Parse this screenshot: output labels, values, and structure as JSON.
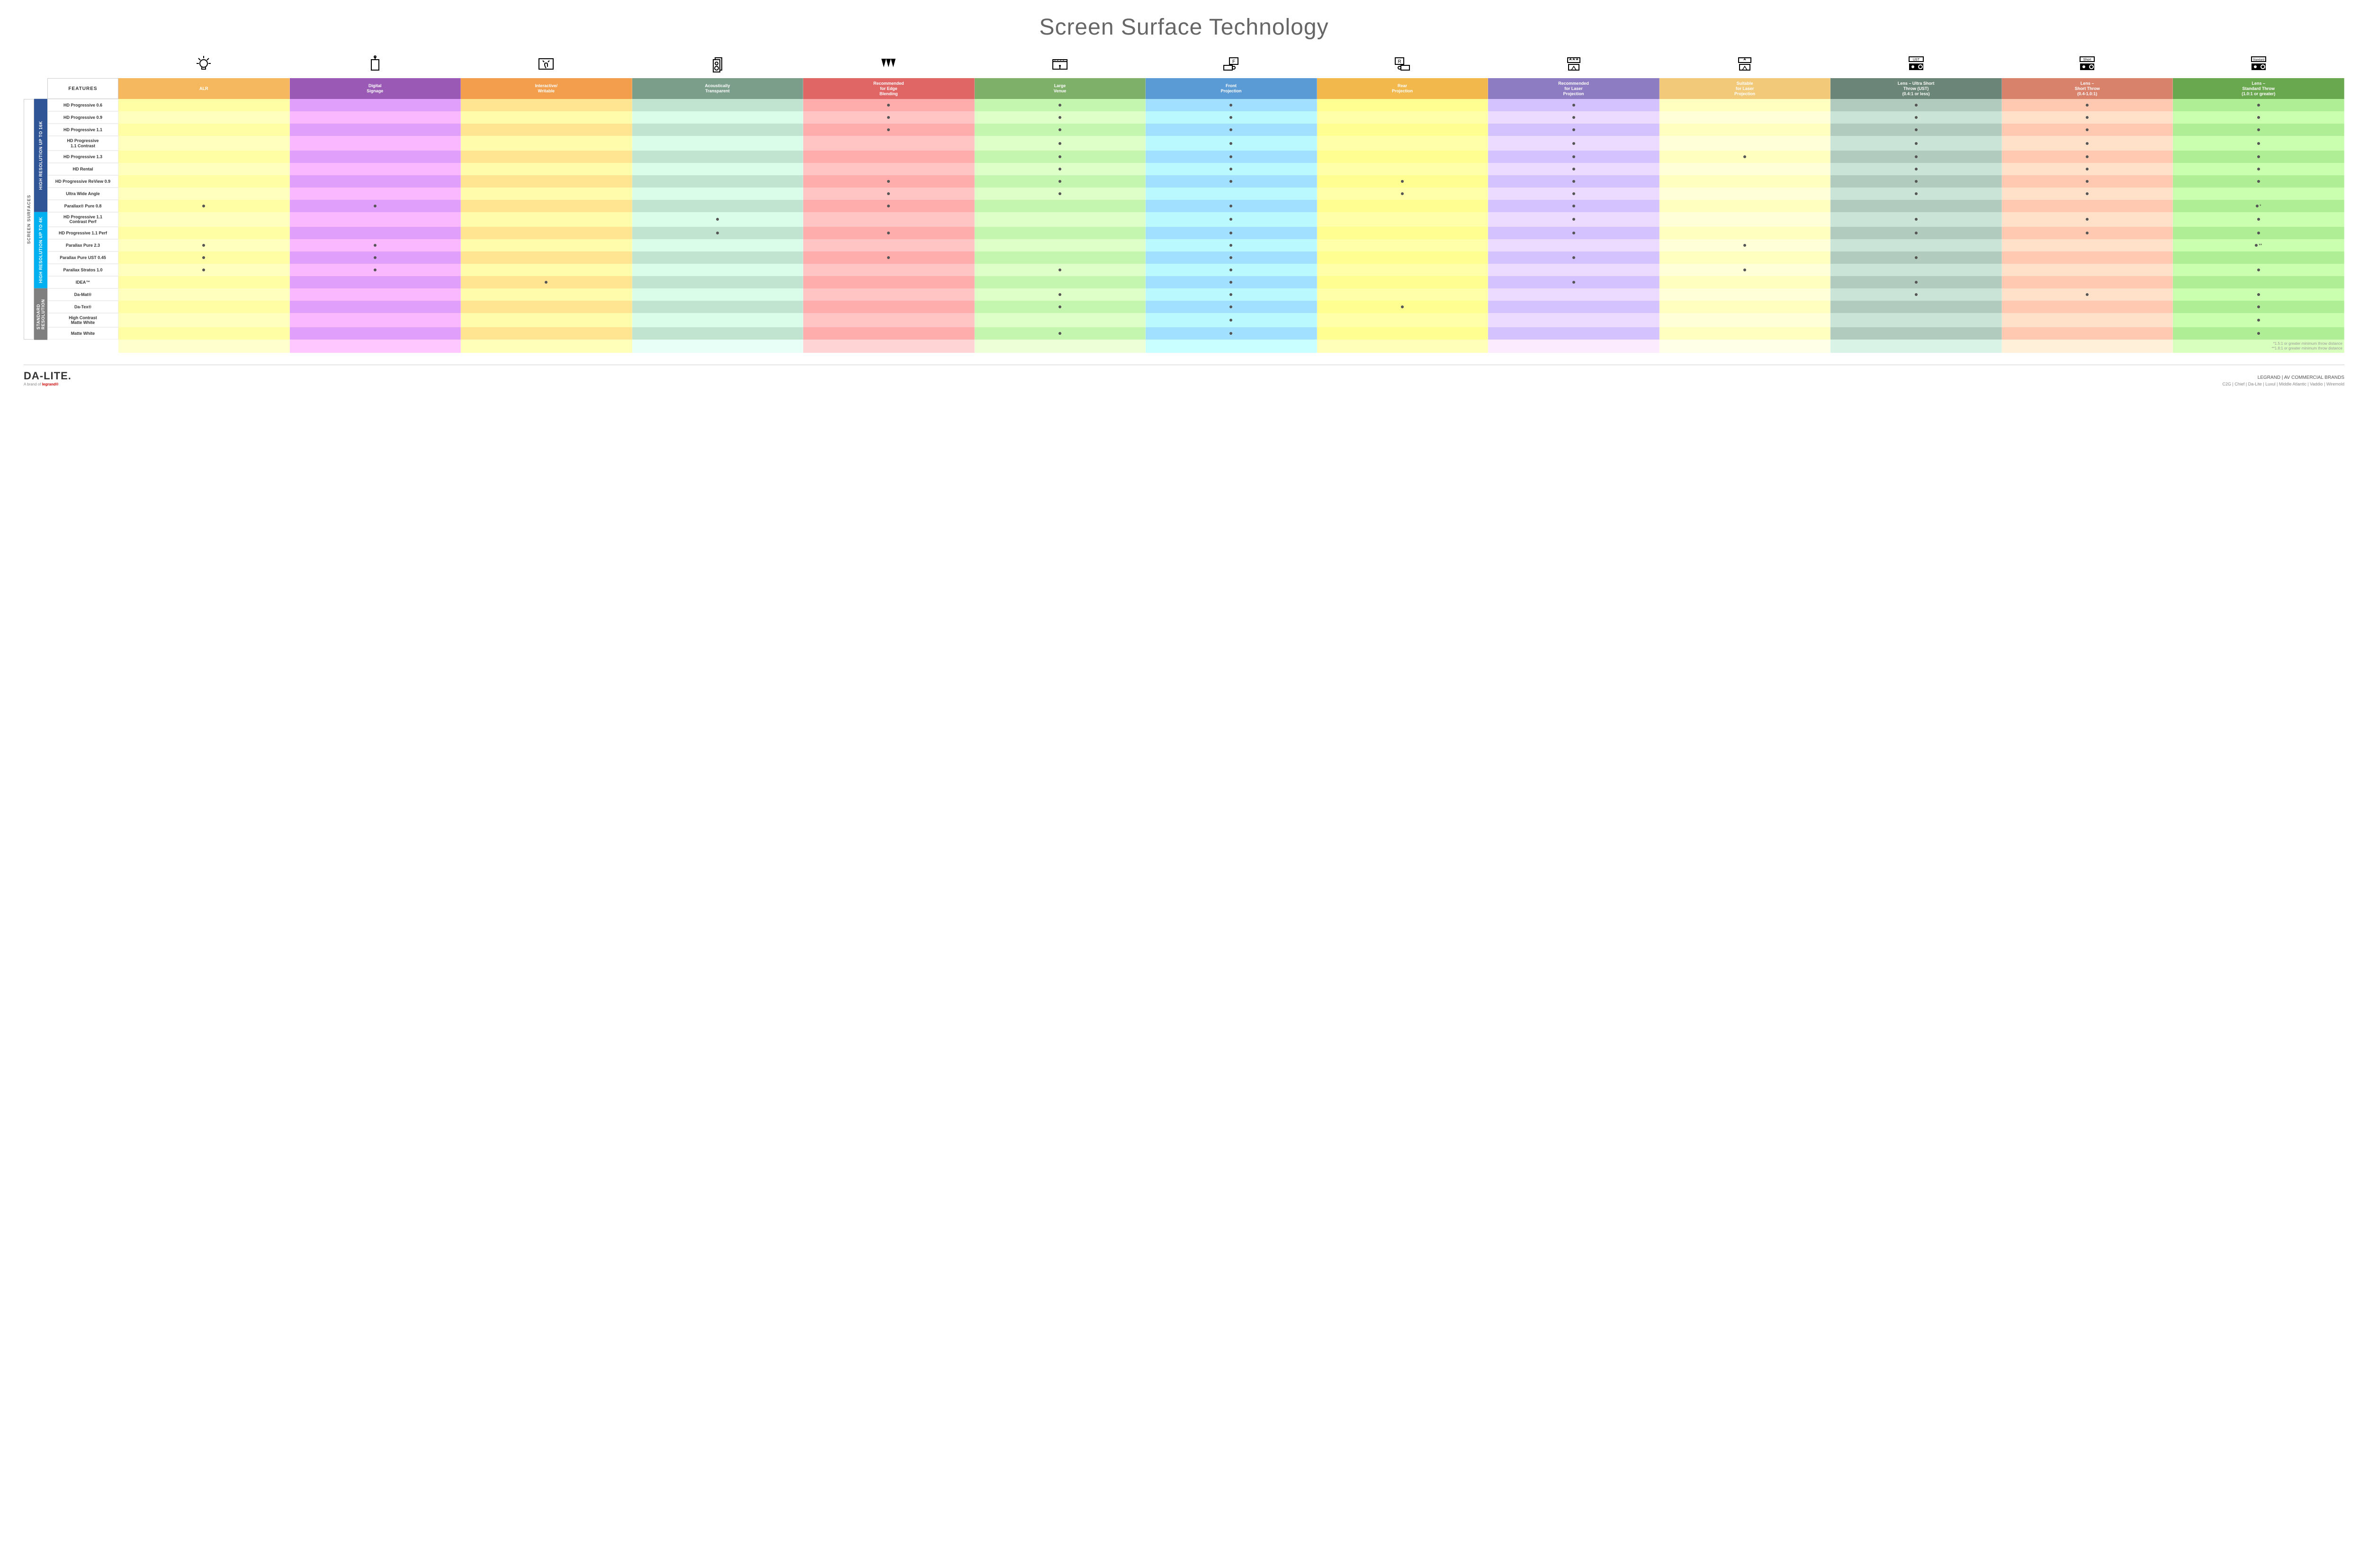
{
  "title": "Screen Surface Technology",
  "outerLabel": "SCREEN SURFACES",
  "featuresHeader": "FEATURES",
  "columns": [
    {
      "key": "alr",
      "label": "ALR",
      "color": "#f5b85f",
      "icon": "bulb"
    },
    {
      "key": "signage",
      "label": "Digital\nSignage",
      "color": "#9b59b6",
      "icon": "signage"
    },
    {
      "key": "interactive",
      "label": "Interactive/\nWritable",
      "color": "#f29e4c",
      "icon": "touch"
    },
    {
      "key": "acoustic",
      "label": "Acoustically\nTransparent",
      "color": "#7a9e8a",
      "icon": "speaker"
    },
    {
      "key": "edge",
      "label": "Recommended\nfor Edge\nBlending",
      "color": "#e06666",
      "icon": "blend"
    },
    {
      "key": "venue",
      "label": "Large\nVenue",
      "color": "#7fb069",
      "icon": "stage"
    },
    {
      "key": "front",
      "label": "Front\nProjection",
      "color": "#5b9bd5",
      "icon": "front"
    },
    {
      "key": "rear",
      "label": "Rear\nProjection",
      "color": "#f2b84b",
      "icon": "rear"
    },
    {
      "key": "reclaser",
      "label": "Recommended\nfor Laser\nProjection",
      "color": "#8e7cc3",
      "icon": "laser3"
    },
    {
      "key": "suitlaser",
      "label": "Suitable\nfor Laser\nProjection",
      "color": "#f2c879",
      "icon": "laser1"
    },
    {
      "key": "ust",
      "label": "Lens – Ultra Short\nThrow (UST)\n(0.4:1 or less)",
      "color": "#6b8578",
      "icon": "proj_ust"
    },
    {
      "key": "short",
      "label": "Lens –\nShort Throw\n(0.4-1.0:1)",
      "color": "#d9826b",
      "icon": "proj_short"
    },
    {
      "key": "std",
      "label": "Lens –\nStandard Throw\n(1.0:1 or greater)",
      "color": "#6aa84f",
      "icon": "proj_std"
    }
  ],
  "altShade": "rgba(255,255,255,0.35)",
  "groups": [
    {
      "label": "HIGH RESOLUTION UP TO 16K",
      "color": "#2f5597",
      "rows": [
        {
          "label": "HD Progressive 0.6",
          "dots": [
            "edge",
            "venue",
            "front",
            "reclaser",
            "ust",
            "short",
            "std"
          ]
        },
        {
          "label": "HD Progressive 0.9",
          "dots": [
            "edge",
            "venue",
            "front",
            "reclaser",
            "ust",
            "short",
            "std"
          ]
        },
        {
          "label": "HD Progressive 1.1",
          "dots": [
            "edge",
            "venue",
            "front",
            "reclaser",
            "ust",
            "short",
            "std"
          ]
        },
        {
          "label": "HD Progressive\n1.1 Contrast",
          "dots": [
            "venue",
            "front",
            "reclaser",
            "ust",
            "short",
            "std"
          ]
        },
        {
          "label": "HD Progressive 1.3",
          "dots": [
            "venue",
            "front",
            "reclaser",
            "suitlaser",
            "ust",
            "short",
            "std"
          ]
        },
        {
          "label": "HD Rental",
          "dots": [
            "venue",
            "front",
            "reclaser",
            "ust",
            "short",
            "std"
          ]
        },
        {
          "label": "HD Progressive ReView 0.9",
          "dots": [
            "edge",
            "venue",
            "front",
            "rear",
            "reclaser",
            "ust",
            "short",
            "std"
          ]
        },
        {
          "label": "Ultra Wide Angle",
          "dots": [
            "edge",
            "venue",
            "rear",
            "reclaser",
            "ust",
            "short"
          ]
        },
        {
          "label": "Parallax® Pure 0.8",
          "dots": [
            "alr",
            "signage",
            "edge",
            "front",
            "reclaser",
            "std"
          ],
          "note": "*"
        }
      ]
    },
    {
      "label": "HIGH RESOLUTION UP TO 4K",
      "color": "#00b0f0",
      "rows": [
        {
          "label": "HD Progressive 1.1\nContrast Perf",
          "dots": [
            "acoustic",
            "front",
            "reclaser",
            "ust",
            "short",
            "std"
          ]
        },
        {
          "label": "HD Progressive 1.1 Perf",
          "dots": [
            "acoustic",
            "edge",
            "front",
            "reclaser",
            "ust",
            "short",
            "std"
          ]
        },
        {
          "label": "Parallax Pure 2.3",
          "dots": [
            "alr",
            "signage",
            "front",
            "suitlaser",
            "std"
          ],
          "note": "**"
        },
        {
          "label": "Parallax Pure UST 0.45",
          "dots": [
            "alr",
            "signage",
            "edge",
            "front",
            "reclaser",
            "ust"
          ]
        },
        {
          "label": "Parallax Stratos 1.0",
          "dots": [
            "alr",
            "signage",
            "venue",
            "front",
            "suitlaser",
            "std"
          ]
        },
        {
          "label": "IDEA™",
          "dots": [
            "interactive",
            "front",
            "reclaser",
            "ust"
          ]
        }
      ]
    },
    {
      "label": "STANDARD\nRESOLUTION",
      "color": "#7f7f7f",
      "rows": [
        {
          "label": "Da-Mat®",
          "dots": [
            "venue",
            "front",
            "ust",
            "short",
            "std"
          ]
        },
        {
          "label": "Da-Tex®",
          "dots": [
            "venue",
            "front",
            "rear",
            "std"
          ]
        },
        {
          "label": "High Contrast\nMatte White",
          "dots": [
            "front",
            "std"
          ]
        },
        {
          "label": "Matte White",
          "dots": [
            "venue",
            "front",
            "std"
          ]
        }
      ]
    }
  ],
  "footnotes": [
    "*1.5:1 or greater minimum throw distance",
    "**1.8:1 or greater minimum throw distance"
  ],
  "footer": {
    "logo": "DA-LITE.",
    "logoSubPrefix": "A brand of ",
    "logoSubBrand": "legrand®",
    "rightTitle": "LEGRAND | AV COMMERCIAL BRANDS",
    "brands": [
      "C2G",
      "Chief",
      "Da-Lite",
      "Luxul",
      "Middle Atlantic",
      "Vaddio",
      "Wiremold"
    ]
  },
  "icons": {
    "bulb": "<g stroke='#000' stroke-width='2' fill='none'><circle cx='21' cy='20' r='8'/><path d='M17 28v4h8v-4'/><line x1='21' y1='4' x2='21' y2='9'/><line x1='6' y1='20' x2='11' y2='20'/><line x1='31' y1='20' x2='36' y2='20'/><line x1='10' y1='9' x2='14' y2='13'/><line x1='32' y1='9' x2='28' y2='13'/></g>",
    "signage": "<g stroke='#000' stroke-width='2' fill='none'><rect x='13' y='12' width='16' height='22'/><line x1='21' y1='6' x2='21' y2='12'/><circle cx='21' cy='6' r='2'/></g>",
    "touch": "<g stroke='#000' stroke-width='2' fill='none'><rect x='6' y='10' width='30' height='22'/><path d='M21 30c-2-3-3-6-3-8 0-2 1-3 3-3s3 1 3 3v5'/><line x1='14' y1='14' x2='17' y2='17'/><line x1='28' y1='14' x2='25' y2='17'/></g>",
    "speaker": "<g stroke='#000' stroke-width='2' fill='none'><rect x='16' y='8' width='14' height='26'/><rect x='12' y='12' width='14' height='26' fill='#fff'/><circle cx='19' cy='20' r='3'/><circle cx='19' cy='30' r='4'/></g>",
    "blend": "<g fill='#000'><path d='M6 10h10l-5 18z'/><path d='M16 10h10l-5 18z'/><path d='M26 10h10l-5 18z'/></g>",
    "stage": "<g stroke='#000' stroke-width='2' fill='none'><rect x='6' y='12' width='30' height='20'/><line x1='6' y1='16' x2='36' y2='16'/><path d='M10 14l2-3M16 14l2-3M22 14l2-3M28 14l2-3' stroke-width='1.5'/><line x1='21' y1='32' x2='21' y2='26'/><circle cx='21' cy='25' r='1' fill='#000'/></g>",
    "front": "<g stroke='#000' stroke-width='2' fill='none'><rect x='18' y='8' width='18' height='14'/><text x='27' y='19' font-size='10' text-anchor='middle' fill='#000' stroke='none'>F</text><rect x='6' y='24' width='18' height='10'/><circle cx='27' cy='29' r='3'/></g>",
    "rear": "<g stroke='#000' stroke-width='2' fill='none'><rect x='6' y='8' width='18' height='14'/><text x='15' y='19' font-size='10' text-anchor='middle' fill='#000' stroke='none'>R</text><rect x='18' y='24' width='18' height='10'/><circle cx='15' cy='29' r='3'/></g>",
    "laser3": "<g stroke='#000' stroke-width='2' fill='none'><rect x='8' y='8' width='26' height='10'/><path d='M12 13l2-3 2 3M19 13l2-3 2 3M26 13l2-3 2 3' stroke-width='1.5'/><rect x='10' y='22' width='22' height='12'/><path d='M16 34l5-8 5 8' stroke-width='1.5'/></g>",
    "laser1": "<g stroke='#000' stroke-width='2' fill='none'><rect x='8' y='8' width='26' height='10'/><path d='M19 13l2-3 2 3' stroke-width='1.5'/><rect x='10' y='22' width='22' height='12'/><path d='M16 34l5-8 5 8' stroke-width='1.5'/></g>",
    "proj_ust": "<g fill='#000'><rect x='6' y='6' width='30' height='10' fill='none' stroke='#000' stroke-width='2'/><text x='21' y='14' font-size='7' text-anchor='middle'>UST</text><rect x='6' y='20' width='30' height='14'/><circle cx='14' cy='27' r='3' fill='#fff'/><circle cx='30' cy='27' r='4' fill='none' stroke='#fff' stroke-width='2'/></g>",
    "proj_short": "<g fill='#000'><rect x='6' y='6' width='30' height='10' fill='none' stroke='#000' stroke-width='2'/><text x='21' y='14' font-size='7' text-anchor='middle'>Short</text><rect x='6' y='20' width='30' height='14'/><circle cx='14' cy='27' r='3' fill='#fff'/><circle cx='30' cy='27' r='4' fill='none' stroke='#fff' stroke-width='2'/></g>",
    "proj_std": "<g fill='#000'><rect x='6' y='6' width='30' height='10' fill='none' stroke='#000' stroke-width='2'/><text x='21' y='14' font-size='6' text-anchor='middle'>Standard</text><rect x='6' y='20' width='30' height='14'/><circle cx='14' cy='27' r='3' fill='#fff'/><circle cx='30' cy='27' r='4' fill='none' stroke='#fff' stroke-width='2'/></g>"
  }
}
